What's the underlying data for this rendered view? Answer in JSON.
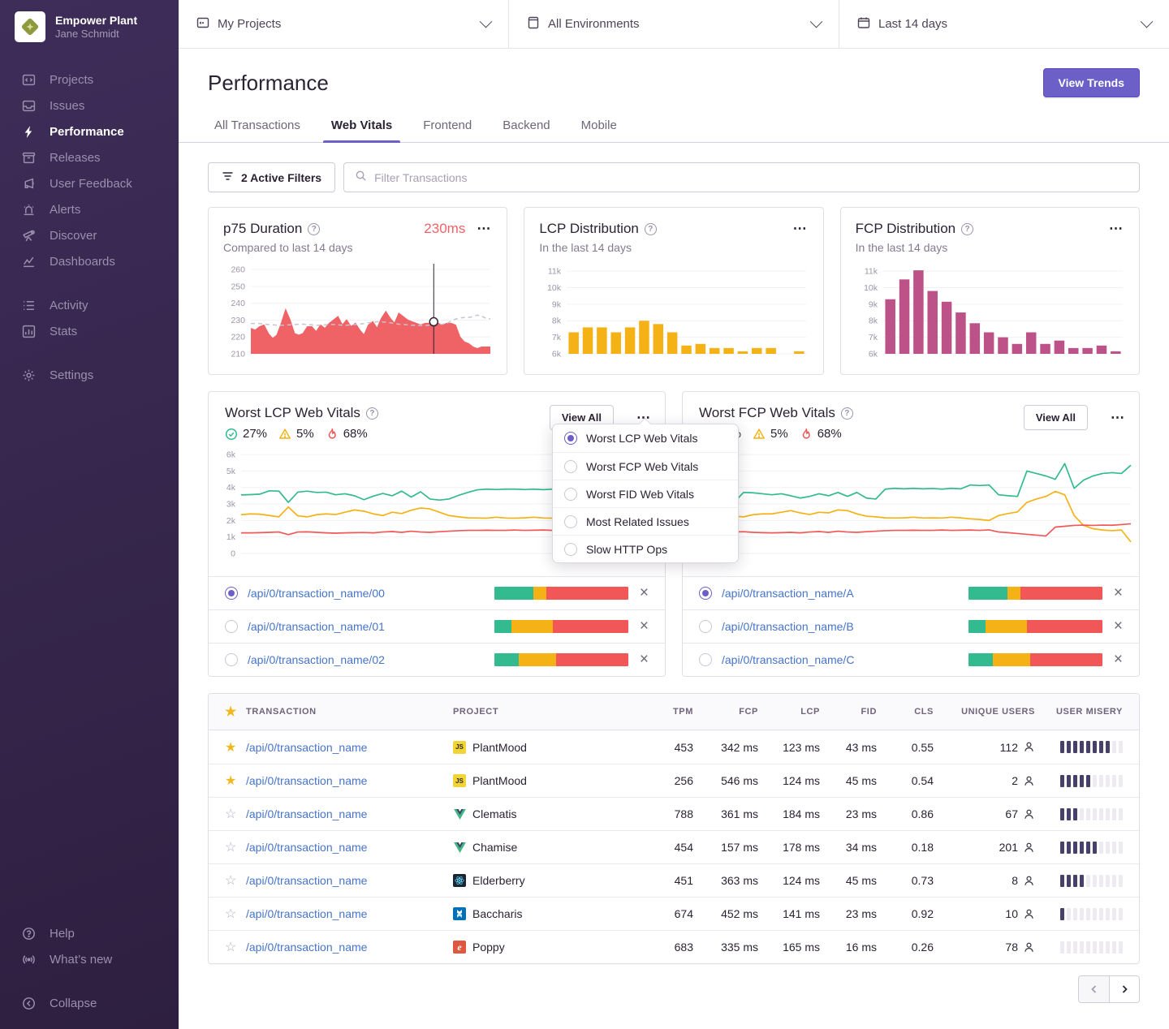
{
  "colors": {
    "accent": "#6C5FC7",
    "link": "#4674CA",
    "red": "#EF6266",
    "amber": "#F5B216",
    "magenta": "#BC5288",
    "green": "#33BA8F",
    "poor_red": "#F25757",
    "misery_fill": "#474169",
    "sidebar_text": "#9B8FAD",
    "logo_olive": "#8F9A3D"
  },
  "sidebar": {
    "org_name": "Empower Plant",
    "user_name": "Jane Schmidt",
    "items": [
      {
        "label": "Projects",
        "icon": "projects-icon"
      },
      {
        "label": "Issues",
        "icon": "issues-icon"
      },
      {
        "label": "Performance",
        "icon": "lightning-icon",
        "active": true
      },
      {
        "label": "Releases",
        "icon": "releases-icon"
      },
      {
        "label": "User Feedback",
        "icon": "feedback-icon"
      },
      {
        "label": "Alerts",
        "icon": "siren-icon"
      },
      {
        "label": "Discover",
        "icon": "telescope-icon"
      },
      {
        "label": "Dashboards",
        "icon": "dashboards-icon"
      },
      {
        "label": "Activity",
        "icon": "activity-icon"
      },
      {
        "label": "Stats",
        "icon": "stats-icon"
      },
      {
        "label": "Settings",
        "icon": "gear-icon"
      }
    ],
    "footer": [
      {
        "label": "Help",
        "icon": "help-icon"
      },
      {
        "label": "What’s new",
        "icon": "broadcast-icon"
      },
      {
        "label": "Collapse",
        "icon": "collapse-icon"
      }
    ]
  },
  "topbar": {
    "project_filter": "My Projects",
    "environment_filter": "All Environments",
    "date_filter": "Last 14 days"
  },
  "header": {
    "title": "Performance",
    "view_trends_label": "View Trends"
  },
  "tabs": [
    {
      "label": "All Transactions"
    },
    {
      "label": "Web Vitals",
      "active": true
    },
    {
      "label": "Frontend"
    },
    {
      "label": "Backend"
    },
    {
      "label": "Mobile"
    }
  ],
  "filter": {
    "active_filters_label": "2 Active Filters",
    "search_placeholder": "Filter Transactions"
  },
  "chart_data": [
    {
      "id": "p75-chart",
      "type": "area",
      "title": "p75 Duration",
      "value_label": "230ms",
      "subtitle": "Compared to last 14 days",
      "ylim": [
        210,
        262
      ],
      "grid": true,
      "legend": "none",
      "yticks": [
        [
          210,
          "210"
        ],
        [
          220,
          "220"
        ],
        [
          230,
          "230"
        ],
        [
          240,
          "240"
        ],
        [
          250,
          "250"
        ],
        [
          260,
          "260"
        ]
      ],
      "marker_index": 42,
      "series": [
        {
          "name": "p75 duration",
          "color": "#EF6266",
          "style": "area",
          "values": [
            225,
            224,
            226,
            227,
            222,
            219,
            221,
            228,
            236,
            230,
            222,
            221,
            222,
            226,
            226,
            223,
            227,
            225,
            228,
            230,
            232,
            227,
            230,
            226,
            228,
            224,
            221,
            227,
            229,
            225,
            231,
            235,
            231,
            228,
            234,
            232,
            230,
            229,
            228,
            227,
            228,
            228,
            229,
            228,
            227,
            228,
            228,
            227,
            220,
            217,
            216,
            214,
            213,
            214,
            214,
            214
          ]
        },
        {
          "name": "previous period",
          "color": "#C9C2D1",
          "style": "dashed",
          "values": [
            228,
            228,
            228,
            227.6,
            227.4,
            227.2,
            227,
            227,
            227,
            227.2,
            227.4,
            227.6,
            227.6,
            227.4,
            227.2,
            227,
            227,
            227.2,
            227.4,
            227.4,
            227.2,
            227,
            227,
            227.2,
            227.4,
            227.6,
            228,
            228.4,
            228.8,
            229,
            229,
            228.8,
            228.4,
            228,
            227.6,
            227.4,
            227.2,
            227,
            227,
            226.8,
            226.8,
            227,
            227.2,
            227.4,
            227.6,
            228,
            229.4,
            230.6,
            231.2,
            231.6,
            231.6,
            232,
            233,
            232.4,
            231,
            230.8
          ]
        }
      ]
    },
    {
      "id": "lcp-dist-chart",
      "type": "bar",
      "title": "LCP Distribution",
      "subtitle": "In the last 14 days",
      "color": "#F5B216",
      "ylim": [
        6000,
        11300
      ],
      "grid": true,
      "yticks": [
        [
          6000,
          "6k"
        ],
        [
          7000,
          "7k"
        ],
        [
          8000,
          "8k"
        ],
        [
          9000,
          "9k"
        ],
        [
          10000,
          "10k"
        ],
        [
          11000,
          "11k"
        ]
      ],
      "values": [
        7300,
        7600,
        7600,
        7300,
        7600,
        8000,
        7800,
        7300,
        6500,
        6600,
        6350,
        6350,
        6150,
        6350,
        6350,
        null,
        6150
      ]
    },
    {
      "id": "fcp-dist-chart",
      "type": "bar",
      "title": "FCP Distribution",
      "subtitle": "In the last 14 days",
      "color": "#BC5288",
      "ylim": [
        6000,
        11300
      ],
      "grid": true,
      "yticks": [
        [
          6000,
          "6k"
        ],
        [
          7000,
          "7k"
        ],
        [
          8000,
          "8k"
        ],
        [
          9000,
          "9k"
        ],
        [
          10000,
          "10k"
        ],
        [
          11000,
          "11k"
        ]
      ],
      "values": [
        9300,
        10500,
        11050,
        9800,
        9150,
        8500,
        7850,
        7300,
        7000,
        6600,
        7300,
        6600,
        6800,
        6350,
        6350,
        6500,
        6150
      ]
    },
    {
      "id": "worst-lcp-chart",
      "type": "line",
      "title": "Worst LCP Web Vitals",
      "ylim": [
        0,
        6300
      ],
      "grid": true,
      "legend": "none",
      "yticks": [
        [
          0,
          "0"
        ],
        [
          1000,
          "1k"
        ],
        [
          2000,
          "2k"
        ],
        [
          3000,
          "3k"
        ],
        [
          4000,
          "4k"
        ],
        [
          5000,
          "5k"
        ],
        [
          6000,
          "6k"
        ]
      ],
      "series": [
        {
          "name": "good",
          "color": "#33BA8F",
          "values": [
            3550,
            3570,
            3600,
            3800,
            3780,
            3100,
            3720,
            3780,
            3700,
            3720,
            3560,
            3620,
            3500,
            3260,
            3480,
            3640,
            3500,
            3780,
            3420,
            3740,
            3300,
            3240,
            3300,
            3520,
            3700,
            3860,
            3900,
            3880,
            3900,
            3900,
            3880,
            3900,
            3870,
            3900,
            3890,
            3900,
            4100,
            4080,
            4100,
            3500,
            3440,
            3420,
            5150,
            4900,
            4650
          ]
        },
        {
          "name": "meh",
          "color": "#F5B216",
          "values": [
            2350,
            2400,
            2380,
            2300,
            2220,
            2820,
            2280,
            2220,
            2350,
            2400,
            2360,
            2500,
            2640,
            2560,
            2400,
            2300,
            2500,
            2420,
            2620,
            2760,
            2700,
            2500,
            2300,
            2220,
            2160,
            2150,
            2140,
            2200,
            2150,
            2140,
            2160,
            2200,
            2150,
            2140,
            2100,
            2000,
            1960,
            1950,
            1960,
            2350,
            2460,
            2520,
            3000,
            3200,
            3420
          ]
        },
        {
          "name": "poor",
          "color": "#F25757",
          "values": [
            1250,
            1250,
            1260,
            1280,
            1300,
            1140,
            1300,
            1310,
            1280,
            1250,
            1230,
            1250,
            1260,
            1270,
            1250,
            1300,
            1330,
            1280,
            1350,
            1300,
            1280,
            1320,
            1350,
            1380,
            1400,
            1400,
            1410,
            1400,
            1400,
            1420,
            1400,
            1410,
            1420,
            1400,
            1430,
            1450,
            1450,
            1440,
            1460,
            1300,
            1280,
            1250,
            1100,
            1050,
            1000
          ]
        }
      ]
    },
    {
      "id": "worst-fcp-chart",
      "type": "line",
      "title": "Worst FCP Web Vitals",
      "ylim": [
        0,
        6300
      ],
      "grid": true,
      "legend": "none",
      "yticks": [
        [
          0,
          "0"
        ],
        [
          1000,
          "1k"
        ],
        [
          2000,
          "2k"
        ],
        [
          3000,
          "3k"
        ],
        [
          4000,
          "4k"
        ],
        [
          5000,
          "5k"
        ],
        [
          6000,
          "6k"
        ]
      ],
      "series": [
        {
          "name": "good",
          "color": "#33BA8F",
          "values": [
            3700,
            3250,
            3100,
            3700,
            3680,
            3620,
            3560,
            3620,
            3500,
            3360,
            3460,
            3620,
            3500,
            3700,
            3460,
            3700,
            3360,
            3300,
            3900,
            3950,
            3920,
            3950,
            3920,
            3940,
            3900,
            3950,
            3920,
            4150,
            4120,
            4150,
            3560,
            3500,
            3460,
            5000,
            4850,
            4700,
            4500,
            5450,
            3950,
            4450,
            4700,
            4850,
            4900,
            4850,
            5350
          ]
        },
        {
          "name": "meh",
          "color": "#F5B216",
          "values": [
            2300,
            2720,
            2260,
            2220,
            2350,
            2400,
            2400,
            2500,
            2600,
            2460,
            2360,
            2500,
            2460,
            2640,
            2600,
            2400,
            2260,
            2220,
            2160,
            2150,
            2160,
            2200,
            2150,
            2160,
            2150,
            2200,
            2160,
            2100,
            2060,
            2000,
            2300,
            2420,
            2520,
            3100,
            3300,
            3460,
            3760,
            3560,
            2300,
            1700,
            1500,
            1420,
            1380,
            1420,
            700
          ]
        },
        {
          "name": "poor",
          "color": "#F25757",
          "values": [
            1250,
            1160,
            1300,
            1320,
            1280,
            1260,
            1250,
            1260,
            1280,
            1250,
            1300,
            1330,
            1280,
            1350,
            1300,
            1280,
            1320,
            1350,
            1380,
            1400,
            1400,
            1410,
            1400,
            1400,
            1420,
            1400,
            1410,
            1420,
            1400,
            1430,
            1300,
            1260,
            1210,
            1160,
            1110,
            1060,
            1600,
            1650,
            1700,
            1720,
            1700,
            1720,
            1710,
            1750,
            1800
          ]
        }
      ]
    }
  ],
  "worst_lcp_card": {
    "title": "Worst LCP Web Vitals",
    "stats": {
      "good": "27%",
      "meh": "5%",
      "poor": "68%"
    },
    "view_all_label": "View All",
    "rows": [
      {
        "label": "/api/0/transaction_name/00",
        "bar": [
          29,
          10,
          61
        ],
        "selected": true
      },
      {
        "label": "/api/0/transaction_name/01",
        "bar": [
          13,
          31,
          56
        ],
        "selected": false
      },
      {
        "label": "/api/0/transaction_name/02",
        "bar": [
          18,
          28,
          54
        ],
        "selected": false
      }
    ]
  },
  "worst_fcp_card": {
    "title": "Worst FCP Web Vitals",
    "stats": {
      "good": "27%",
      "meh": "5%",
      "poor": "68%"
    },
    "view_all_label": "View All",
    "rows": [
      {
        "label": "/api/0/transaction_name/A",
        "bar": [
          29,
          10,
          61
        ],
        "selected": true
      },
      {
        "label": "/api/0/transaction_name/B",
        "bar": [
          13,
          31,
          56
        ],
        "selected": false
      },
      {
        "label": "/api/0/transaction_name/C",
        "bar": [
          18,
          28,
          54
        ],
        "selected": false
      }
    ]
  },
  "vitals_menu": {
    "options": [
      "Worst LCP Web Vitals",
      "Worst FCP Web Vitals",
      "Worst FID Web Vitals",
      "Most Related Issues",
      "Slow HTTP Ops"
    ],
    "selected_index": 0
  },
  "table": {
    "headers": [
      "TRANSACTION",
      "PROJECT",
      "TPM",
      "FCP",
      "LCP",
      "FID",
      "CLS",
      "UNIQUE USERS",
      "USER MISERY"
    ],
    "rows": [
      {
        "starred": true,
        "transaction": "/api/0/transaction_name",
        "project": "PlantMood",
        "platform": "js",
        "tpm": "453",
        "fcp": "342 ms",
        "lcp": "123 ms",
        "fid": "43 ms",
        "cls": "0.55",
        "users": "112",
        "misery": 8
      },
      {
        "starred": true,
        "transaction": "/api/0/transaction_name",
        "project": "PlantMood",
        "platform": "js",
        "tpm": "256",
        "fcp": "546 ms",
        "lcp": "124 ms",
        "fid": "45 ms",
        "cls": "0.54",
        "users": "2",
        "misery": 5
      },
      {
        "starred": false,
        "transaction": "/api/0/transaction_name",
        "project": "Clematis",
        "platform": "vue",
        "tpm": "788",
        "fcp": "361 ms",
        "lcp": "184 ms",
        "fid": "23 ms",
        "cls": "0.86",
        "users": "67",
        "misery": 3
      },
      {
        "starred": false,
        "transaction": "/api/0/transaction_name",
        "project": "Chamise",
        "platform": "vue",
        "tpm": "454",
        "fcp": "157 ms",
        "lcp": "178 ms",
        "fid": "34 ms",
        "cls": "0.18",
        "users": "201",
        "misery": 6
      },
      {
        "starred": false,
        "transaction": "/api/0/transaction_name",
        "project": "Elderberry",
        "platform": "react",
        "tpm": "451",
        "fcp": "363 ms",
        "lcp": "124 ms",
        "fid": "45 ms",
        "cls": "0.73",
        "users": "8",
        "misery": 4
      },
      {
        "starred": false,
        "transaction": "/api/0/transaction_name",
        "project": "Baccharis",
        "platform": "backbone",
        "tpm": "674",
        "fcp": "452 ms",
        "lcp": "141 ms",
        "fid": "23 ms",
        "cls": "0.92",
        "users": "10",
        "misery": 1
      },
      {
        "starred": false,
        "transaction": "/api/0/transaction_name",
        "project": "Poppy",
        "platform": "ember",
        "tpm": "683",
        "fcp": "335 ms",
        "lcp": "165 ms",
        "fid": "16 ms",
        "cls": "0.26",
        "users": "78",
        "misery": 0
      }
    ]
  },
  "pagination": {
    "prev_enabled": false,
    "next_enabled": true
  }
}
